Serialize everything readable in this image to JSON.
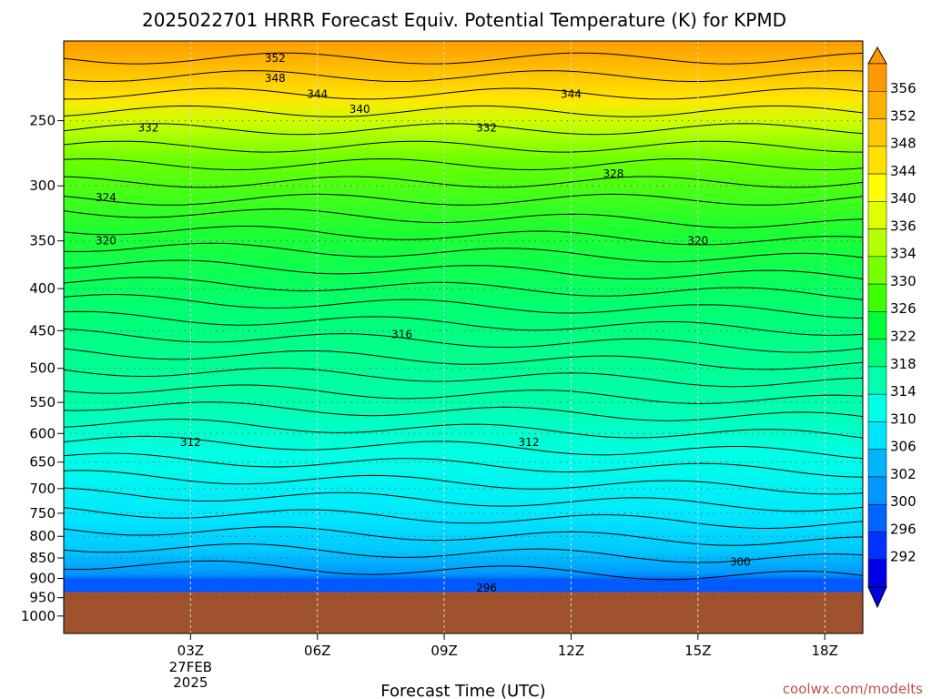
{
  "chart_data": {
    "type": "heatmap",
    "title": "2025022701 HRRR Forecast Equiv. Potential Temperature (K) for KPMD",
    "xlabel": "Forecast Time (UTC)",
    "ylabel": "",
    "x_ticks": [
      {
        "hour": 3,
        "label": "03Z",
        "date_lines": [
          "27FEB",
          "2025"
        ]
      },
      {
        "hour": 6,
        "label": "06Z"
      },
      {
        "hour": 9,
        "label": "09Z"
      },
      {
        "hour": 12,
        "label": "12Z"
      },
      {
        "hour": 15,
        "label": "15Z"
      },
      {
        "hour": 18,
        "label": "18Z"
      }
    ],
    "xlim": [
      0,
      18.9
    ],
    "y_scale": "log-pressure, inverted",
    "ylim": [
      1050,
      200
    ],
    "y_ticks": [
      250,
      300,
      350,
      400,
      450,
      500,
      550,
      600,
      650,
      700,
      750,
      800,
      850,
      900,
      950,
      1000
    ],
    "grid": true,
    "terrain": {
      "surface_pressure_hPa": 935,
      "color": "#a0522d"
    },
    "colorbar": {
      "placement": "right",
      "ticks": [
        356,
        352,
        348,
        344,
        340,
        336,
        334,
        330,
        326,
        322,
        318,
        314,
        310,
        306,
        302,
        300,
        296,
        292
      ],
      "colors": [
        "#ff9900",
        "#ffb000",
        "#ffc800",
        "#ffe000",
        "#ffff00",
        "#e0ff00",
        "#b4ff00",
        "#78ff00",
        "#3cff00",
        "#00ff38",
        "#00ff78",
        "#00ffb0",
        "#00ffe6",
        "#00e6ff",
        "#00b4ff",
        "#0096ff",
        "#0064ff",
        "#0032ff",
        "#0000e6"
      ],
      "extend": "both"
    },
    "contours": [
      {
        "value": 352,
        "label_at_hour": 5.0
      },
      {
        "value": 348,
        "label_at_hour": 5.0
      },
      {
        "value": 344,
        "label_at_hour": 6.0
      },
      {
        "value": 344,
        "label_at_hour": 12.0
      },
      {
        "value": 340,
        "label_at_hour": 7.0
      },
      {
        "value": 332,
        "label_at_hour": 2.0
      },
      {
        "value": 332,
        "label_at_hour": 10.0
      },
      {
        "value": 328,
        "label_at_hour": 13.0
      },
      {
        "value": 324,
        "label_at_hour": 1.0
      },
      {
        "value": 320,
        "label_at_hour": 1.0
      },
      {
        "value": 320,
        "label_at_hour": 15.0
      },
      {
        "value": 316,
        "label_at_hour": 8.0
      },
      {
        "value": 312,
        "label_at_hour": 3.0
      },
      {
        "value": 312,
        "label_at_hour": 11.0
      },
      {
        "value": 300,
        "label_at_hour": 16.0
      },
      {
        "value": 296,
        "label_at_hour": 10.0
      }
    ]
  },
  "credit": "coolwx.com/modelts"
}
